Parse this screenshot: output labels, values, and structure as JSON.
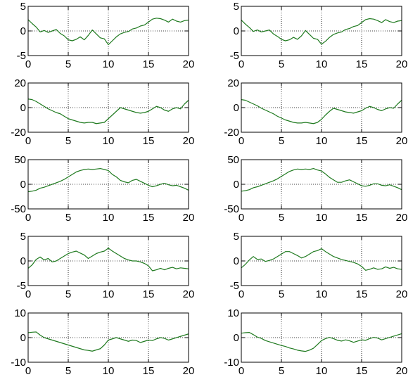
{
  "figure": {
    "background": "#ffffff",
    "axes_color": "#000000",
    "grid_color": "#000000",
    "line_color": "#1f7a1f"
  },
  "chart_data": [
    {
      "type": "line",
      "row": 1,
      "col": 1,
      "xlim": [
        0,
        20
      ],
      "ylim": [
        -5,
        5
      ],
      "xticks": [
        "0",
        "5",
        "10",
        "15",
        "20"
      ],
      "yticks": [
        "-5",
        "0",
        "5"
      ],
      "grid": true,
      "series": [
        {
          "x": [
            0,
            0.5,
            1,
            1.5,
            2,
            2.5,
            3,
            3.5,
            4,
            4.5,
            5,
            5.5,
            6,
            6.5,
            7,
            7.5,
            8,
            8.5,
            9,
            9.5,
            10,
            10.5,
            11,
            11.5,
            12,
            12.5,
            13,
            13.5,
            14,
            14.5,
            15,
            15.5,
            16,
            16.5,
            17,
            17.5,
            18,
            18.5,
            19,
            19.5,
            20
          ],
          "y": [
            2.3,
            1.5,
            0.8,
            -0.2,
            0.1,
            -0.3,
            0,
            0.3,
            -0.5,
            -1,
            -1.8,
            -2,
            -1.7,
            -1.2,
            -1.8,
            -0.9,
            0.2,
            -0.6,
            -1.4,
            -1.6,
            -2.8,
            -2,
            -1.2,
            -0.6,
            -0.3,
            -0.1,
            0.4,
            0.6,
            1,
            1.2,
            1.8,
            2.4,
            2.6,
            2.5,
            2.2,
            1.8,
            2.4,
            2,
            1.8,
            2.1,
            2.2
          ]
        }
      ]
    },
    {
      "type": "line",
      "row": 1,
      "col": 2,
      "xlim": [
        0,
        20
      ],
      "ylim": [
        -5,
        5
      ],
      "xticks": [
        "0",
        "5",
        "10",
        "15",
        "20"
      ],
      "yticks": [
        "-5",
        "0",
        "5"
      ],
      "grid": true,
      "series": [
        {
          "x": [
            0,
            0.5,
            1,
            1.5,
            2,
            2.5,
            3,
            3.5,
            4,
            4.5,
            5,
            5.5,
            6,
            6.5,
            7,
            7.5,
            8,
            8.5,
            9,
            9.5,
            10,
            10.5,
            11,
            11.5,
            12,
            12.5,
            13,
            13.5,
            14,
            14.5,
            15,
            15.5,
            16,
            16.5,
            17,
            17.5,
            18,
            18.5,
            19,
            19.5,
            20
          ],
          "y": [
            2.2,
            1.4,
            0.7,
            -0.1,
            0.2,
            -0.2,
            0,
            0.2,
            -0.6,
            -1.1,
            -1.7,
            -2,
            -1.8,
            -1.3,
            -1.7,
            -1,
            0.1,
            -0.7,
            -1.5,
            -1.7,
            -2.7,
            -2.1,
            -1.3,
            -0.7,
            -0.4,
            -0.2,
            0.3,
            0.5,
            0.9,
            1.1,
            1.7,
            2.3,
            2.5,
            2.4,
            2.1,
            1.7,
            2.3,
            1.9,
            1.7,
            2,
            2.1
          ]
        }
      ]
    },
    {
      "type": "line",
      "row": 2,
      "col": 1,
      "xlim": [
        0,
        20
      ],
      "ylim": [
        -20,
        20
      ],
      "xticks": [
        "0",
        "5",
        "10",
        "15",
        "20"
      ],
      "yticks": [
        "-20",
        "0",
        "20"
      ],
      "grid": true,
      "series": [
        {
          "x": [
            0,
            0.5,
            1,
            1.5,
            2,
            2.5,
            3,
            3.5,
            4,
            4.5,
            5,
            5.5,
            6,
            6.5,
            7,
            7.5,
            8,
            8.5,
            9,
            9.5,
            10,
            10.5,
            11,
            11.5,
            12,
            12.5,
            13,
            13.5,
            14,
            14.5,
            15,
            15.5,
            16,
            16.5,
            17,
            17.5,
            18,
            18.5,
            19,
            19.5,
            20
          ],
          "y": [
            7,
            6.5,
            5,
            3,
            1,
            -1,
            -2.5,
            -4,
            -5,
            -7,
            -9,
            -10,
            -11,
            -12,
            -12.5,
            -12,
            -12,
            -13,
            -12.5,
            -12,
            -9,
            -6,
            -3,
            0,
            -1,
            -2,
            -3,
            -4,
            -4.5,
            -4,
            -3,
            -1,
            1,
            0,
            -2,
            -3,
            -1,
            0,
            -1,
            3,
            6
          ]
        }
      ]
    },
    {
      "type": "line",
      "row": 2,
      "col": 2,
      "xlim": [
        0,
        20
      ],
      "ylim": [
        -20,
        20
      ],
      "xticks": [
        "0",
        "5",
        "10",
        "15",
        "20"
      ],
      "yticks": [
        "-20",
        "0",
        "20"
      ],
      "grid": true,
      "series": [
        {
          "x": [
            0,
            0.5,
            1,
            1.5,
            2,
            2.5,
            3,
            3.5,
            4,
            4.5,
            5,
            5.5,
            6,
            6.5,
            7,
            7.5,
            8,
            8.5,
            9,
            9.5,
            10,
            10.5,
            11,
            11.5,
            12,
            12.5,
            13,
            13.5,
            14,
            14.5,
            15,
            15.5,
            16,
            16.5,
            17,
            17.5,
            18,
            18.5,
            19,
            19.5,
            20
          ],
          "y": [
            6.5,
            6,
            4.5,
            3,
            1.5,
            -0.5,
            -2,
            -3.5,
            -5,
            -7,
            -8.5,
            -10,
            -11,
            -12,
            -12.5,
            -12.5,
            -12,
            -12.5,
            -13,
            -12,
            -9.5,
            -6,
            -3,
            -0.5,
            -1.5,
            -2.5,
            -3.5,
            -4,
            -4.5,
            -3.5,
            -2.5,
            -0.5,
            1,
            0,
            -1.5,
            -2.5,
            -1,
            0,
            -0.5,
            3,
            6
          ]
        }
      ]
    },
    {
      "type": "line",
      "row": 3,
      "col": 1,
      "xlim": [
        0,
        20
      ],
      "ylim": [
        -50,
        50
      ],
      "xticks": [
        "0",
        "5",
        "10",
        "15",
        "20"
      ],
      "yticks": [
        "-50",
        "0",
        "50"
      ],
      "grid": true,
      "series": [
        {
          "x": [
            0,
            0.5,
            1,
            1.5,
            2,
            2.5,
            3,
            3.5,
            4,
            4.5,
            5,
            5.5,
            6,
            6.5,
            7,
            7.5,
            8,
            8.5,
            9,
            9.5,
            10,
            10.5,
            11,
            11.5,
            12,
            12.5,
            13,
            13.5,
            14,
            14.5,
            15,
            15.5,
            16,
            16.5,
            17,
            17.5,
            18,
            18.5,
            19,
            19.5,
            20
          ],
          "y": [
            -15,
            -14,
            -12,
            -8,
            -6,
            -3,
            0,
            3,
            6,
            10,
            15,
            20,
            25,
            28,
            30,
            31,
            30,
            31,
            32,
            30,
            28,
            20,
            15,
            8,
            5,
            3,
            8,
            10,
            6,
            2,
            -2,
            -5,
            -3,
            0,
            2,
            -1,
            -3,
            -2,
            -5,
            -8,
            -12
          ]
        }
      ]
    },
    {
      "type": "line",
      "row": 3,
      "col": 2,
      "xlim": [
        0,
        20
      ],
      "ylim": [
        -50,
        50
      ],
      "xticks": [
        "0",
        "5",
        "10",
        "15",
        "20"
      ],
      "yticks": [
        "-50",
        "0",
        "50"
      ],
      "grid": true,
      "series": [
        {
          "x": [
            0,
            0.5,
            1,
            1.5,
            2,
            2.5,
            3,
            3.5,
            4,
            4.5,
            5,
            5.5,
            6,
            6.5,
            7,
            7.5,
            8,
            8.5,
            9,
            9.5,
            10,
            10.5,
            11,
            11.5,
            12,
            12.5,
            13,
            13.5,
            14,
            14.5,
            15,
            15.5,
            16,
            16.5,
            17,
            17.5,
            18,
            18.5,
            19,
            19.5,
            20
          ],
          "y": [
            -14,
            -13,
            -11,
            -7,
            -5,
            -2,
            1,
            4,
            7,
            11,
            16,
            21,
            26,
            29,
            31,
            30,
            31,
            30,
            32,
            29,
            27,
            21,
            14,
            9,
            4,
            4,
            7,
            9,
            5,
            1,
            -3,
            -4,
            -2,
            1,
            1,
            -2,
            -3,
            -1,
            -4,
            -7,
            -11
          ]
        }
      ]
    },
    {
      "type": "line",
      "row": 4,
      "col": 1,
      "xlim": [
        0,
        20
      ],
      "ylim": [
        -5,
        5
      ],
      "xticks": [
        "0",
        "5",
        "10",
        "15",
        "20"
      ],
      "yticks": [
        "-5",
        "0",
        "5"
      ],
      "grid": true,
      "series": [
        {
          "x": [
            0,
            0.5,
            1,
            1.5,
            2,
            2.5,
            3,
            3.5,
            4,
            4.5,
            5,
            5.5,
            6,
            6.5,
            7,
            7.5,
            8,
            8.5,
            9,
            9.5,
            10,
            10.5,
            11,
            11.5,
            12,
            12.5,
            13,
            13.5,
            14,
            14.5,
            15,
            15.5,
            16,
            16.5,
            17,
            17.5,
            18,
            18.5,
            19,
            19.5,
            20
          ],
          "y": [
            -1.5,
            -0.8,
            0.3,
            0.8,
            0.2,
            0.5,
            -0.2,
            0,
            0.5,
            1,
            1.5,
            1.8,
            2,
            1.6,
            1.2,
            0.5,
            1,
            1.5,
            1.8,
            2,
            2.6,
            2,
            1.5,
            1,
            0.5,
            0.2,
            0,
            0,
            -0.2,
            -0.5,
            -1,
            -2,
            -1.8,
            -1.5,
            -1.8,
            -1.5,
            -1.3,
            -1.6,
            -1.4,
            -1.5,
            -1.6
          ]
        }
      ]
    },
    {
      "type": "line",
      "row": 4,
      "col": 2,
      "xlim": [
        0,
        20
      ],
      "ylim": [
        -5,
        5
      ],
      "xticks": [
        "0",
        "5",
        "10",
        "15",
        "20"
      ],
      "yticks": [
        "-5",
        "0",
        "5"
      ],
      "grid": true,
      "series": [
        {
          "x": [
            0,
            0.5,
            1,
            1.5,
            2,
            2.5,
            3,
            3.5,
            4,
            4.5,
            5,
            5.5,
            6,
            6.5,
            7,
            7.5,
            8,
            8.5,
            9,
            9.5,
            10,
            10.5,
            11,
            11.5,
            12,
            12.5,
            13,
            13.5,
            14,
            14.5,
            15,
            15.5,
            16,
            16.5,
            17,
            17.5,
            18,
            18.5,
            19,
            19.5,
            20
          ],
          "y": [
            -1.4,
            -0.7,
            0.2,
            0.9,
            0.3,
            0.4,
            -0.1,
            0.1,
            0.4,
            0.9,
            1.4,
            1.9,
            1.9,
            1.5,
            1.1,
            0.6,
            0.9,
            1.4,
            1.9,
            2.1,
            2.5,
            1.9,
            1.4,
            0.9,
            0.6,
            0.3,
            0.1,
            -0.1,
            -0.3,
            -0.6,
            -1.1,
            -1.9,
            -1.7,
            -1.4,
            -1.7,
            -1.6,
            -1.2,
            -1.5,
            -1.3,
            -1.6,
            -1.7
          ]
        }
      ]
    },
    {
      "type": "line",
      "row": 5,
      "col": 1,
      "xlim": [
        0,
        20
      ],
      "ylim": [
        -10,
        10
      ],
      "xticks": [
        "0",
        "5",
        "10",
        "15",
        "20"
      ],
      "yticks": [
        "-10",
        "0",
        "10"
      ],
      "grid": true,
      "series": [
        {
          "x": [
            0,
            0.5,
            1,
            1.5,
            2,
            2.5,
            3,
            3.5,
            4,
            4.5,
            5,
            5.5,
            6,
            6.5,
            7,
            7.5,
            8,
            8.5,
            9,
            9.5,
            10,
            10.5,
            11,
            11.5,
            12,
            12.5,
            13,
            13.5,
            14,
            14.5,
            15,
            15.5,
            16,
            16.5,
            17,
            17.5,
            18,
            18.5,
            19,
            19.5,
            20
          ],
          "y": [
            2,
            2.2,
            2.3,
            1,
            0,
            -0.5,
            -1,
            -1.5,
            -2,
            -2.5,
            -3,
            -3.5,
            -4,
            -4.5,
            -5,
            -5.2,
            -5.5,
            -5,
            -4.5,
            -3,
            -1,
            -0.5,
            0,
            -0.5,
            -1,
            -1.5,
            -1,
            -1.2,
            -2,
            -1.5,
            -1,
            -1.2,
            -0.5,
            0,
            -0.3,
            -1,
            -0.5,
            0,
            0.5,
            1,
            1.5
          ]
        }
      ]
    },
    {
      "type": "line",
      "row": 5,
      "col": 2,
      "xlim": [
        0,
        20
      ],
      "ylim": [
        -10,
        10
      ],
      "xticks": [
        "0",
        "5",
        "10",
        "15",
        "20"
      ],
      "yticks": [
        "-10",
        "0",
        "10"
      ],
      "grid": true,
      "series": [
        {
          "x": [
            0,
            0.5,
            1,
            1.5,
            2,
            2.5,
            3,
            3.5,
            4,
            4.5,
            5,
            5.5,
            6,
            6.5,
            7,
            7.5,
            8,
            8.5,
            9,
            9.5,
            10,
            10.5,
            11,
            11.5,
            12,
            12.5,
            13,
            13.5,
            14,
            14.5,
            15,
            15.5,
            16,
            16.5,
            17,
            17.5,
            18,
            18.5,
            19,
            19.5,
            20
          ],
          "y": [
            1.8,
            2,
            2.1,
            1.2,
            0.2,
            -0.3,
            -1.2,
            -1.7,
            -2.2,
            -2.7,
            -3.2,
            -3.6,
            -4.2,
            -4.6,
            -5.1,
            -5.4,
            -5.6,
            -5.1,
            -4.3,
            -2.8,
            -1.2,
            -0.4,
            0.1,
            -0.4,
            -1.1,
            -1.4,
            -0.9,
            -1.3,
            -1.9,
            -1.4,
            -0.9,
            -1.1,
            -0.4,
            0.1,
            -0.2,
            -0.9,
            -0.4,
            0.1,
            0.6,
            1.1,
            1.6
          ]
        }
      ]
    }
  ]
}
